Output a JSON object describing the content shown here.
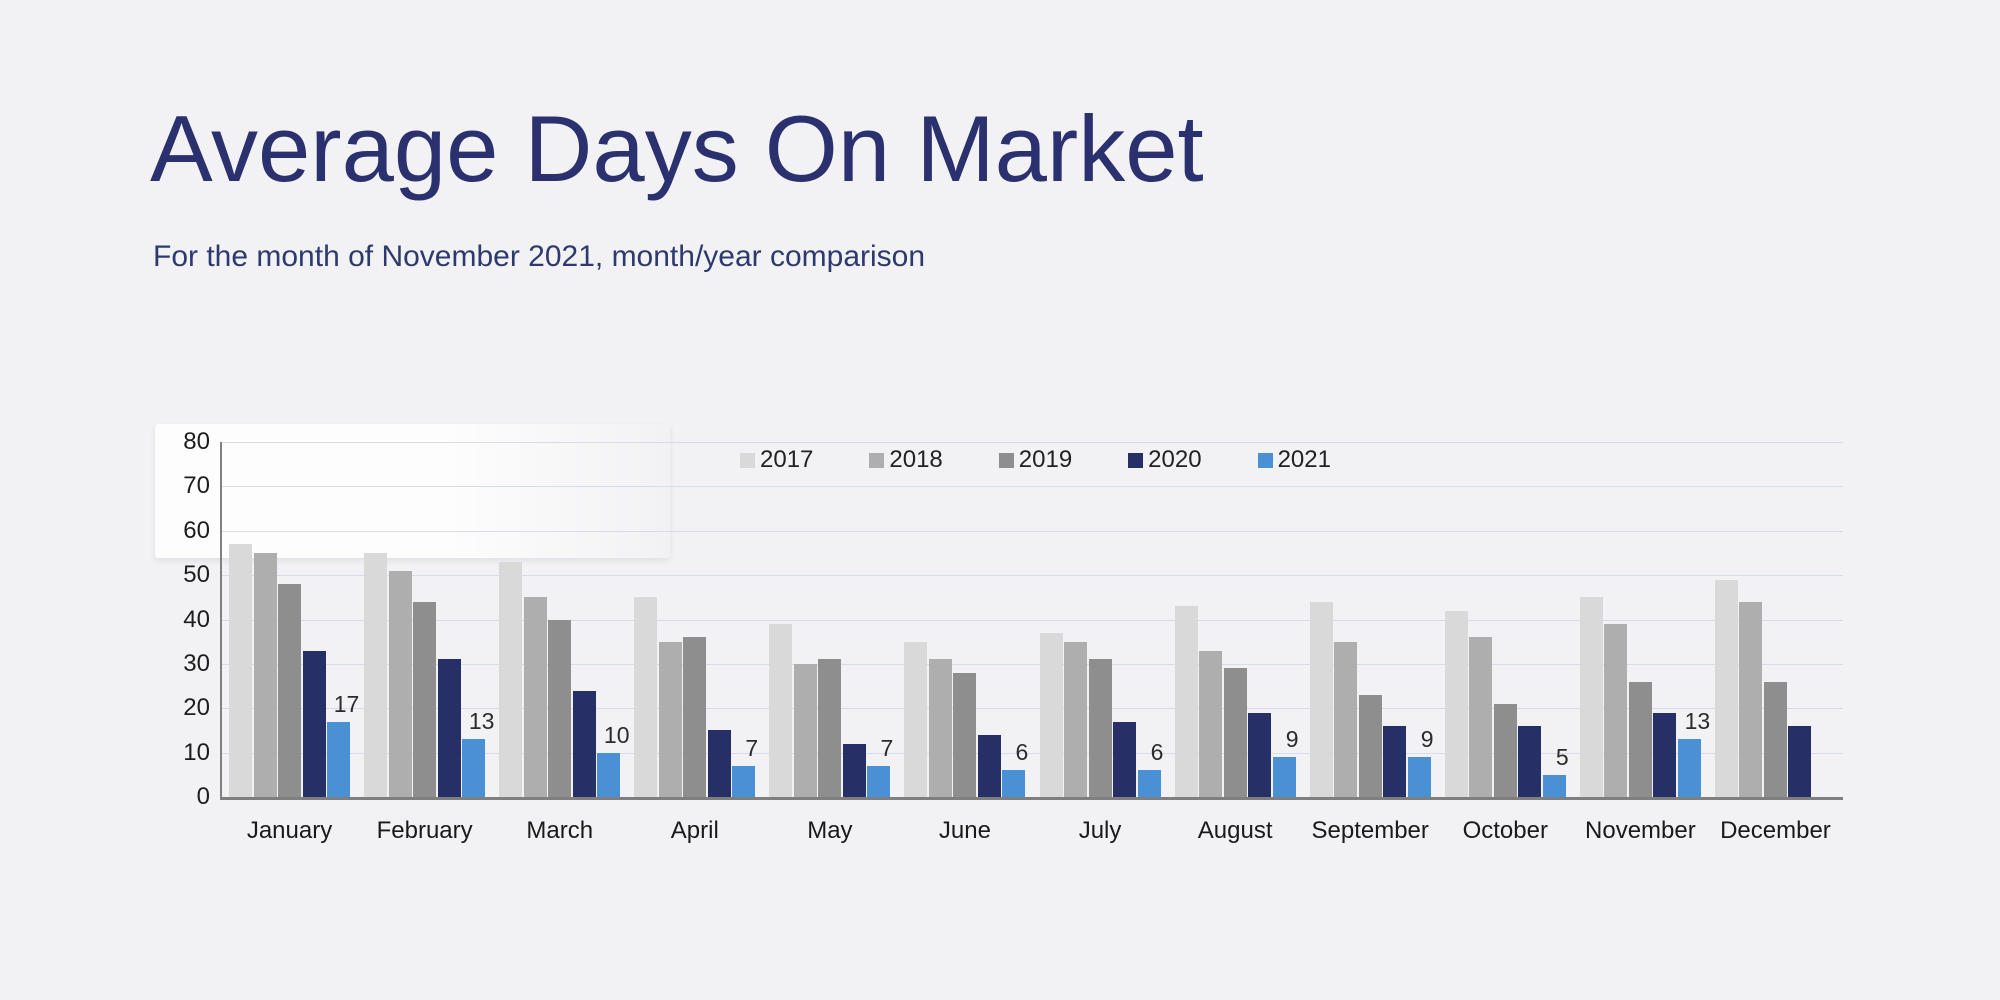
{
  "header": {
    "title": "Average Days On Market",
    "subtitle": "For the month of November 2021, month/year comparison",
    "title_color": "#2a316e"
  },
  "chart_data": {
    "type": "bar",
    "title": "Average Days On Market",
    "subtitle": "For the month of November 2021, month/year comparison",
    "categories": [
      "January",
      "February",
      "March",
      "April",
      "May",
      "June",
      "July",
      "August",
      "September",
      "October",
      "November",
      "December"
    ],
    "series": [
      {
        "name": "2017",
        "color": "#d9d9d9",
        "values": [
          57,
          55,
          53,
          45,
          39,
          35,
          37,
          43,
          44,
          42,
          45,
          49
        ]
      },
      {
        "name": "2018",
        "color": "#aeaeae",
        "values": [
          55,
          51,
          45,
          35,
          30,
          31,
          35,
          33,
          35,
          36,
          39,
          44
        ]
      },
      {
        "name": "2019",
        "color": "#8e8e8e",
        "values": [
          48,
          44,
          40,
          36,
          31,
          28,
          31,
          29,
          23,
          21,
          26,
          26
        ]
      },
      {
        "name": "2020",
        "color": "#262f66",
        "values": [
          33,
          31,
          24,
          15,
          12,
          14,
          17,
          19,
          16,
          16,
          19,
          16
        ]
      },
      {
        "name": "2021",
        "color": "#4a90d5",
        "values": [
          17,
          13,
          10,
          7,
          7,
          6,
          6,
          9,
          9,
          5,
          13,
          null
        ]
      }
    ],
    "data_label_series": "2021",
    "data_labels": [
      "17",
      "13",
      "10",
      "7",
      "7",
      "6",
      "6",
      "9",
      "9",
      "5",
      "13",
      null
    ],
    "xlabel": "",
    "ylabel": "",
    "ylim": [
      0,
      80
    ],
    "yticks": [
      0,
      10,
      20,
      30,
      40,
      50,
      60,
      70,
      80
    ],
    "grid": true,
    "legend_position": "top-center",
    "gridline_color": "#d7dcec",
    "axis_color": "#7f7f7f"
  }
}
